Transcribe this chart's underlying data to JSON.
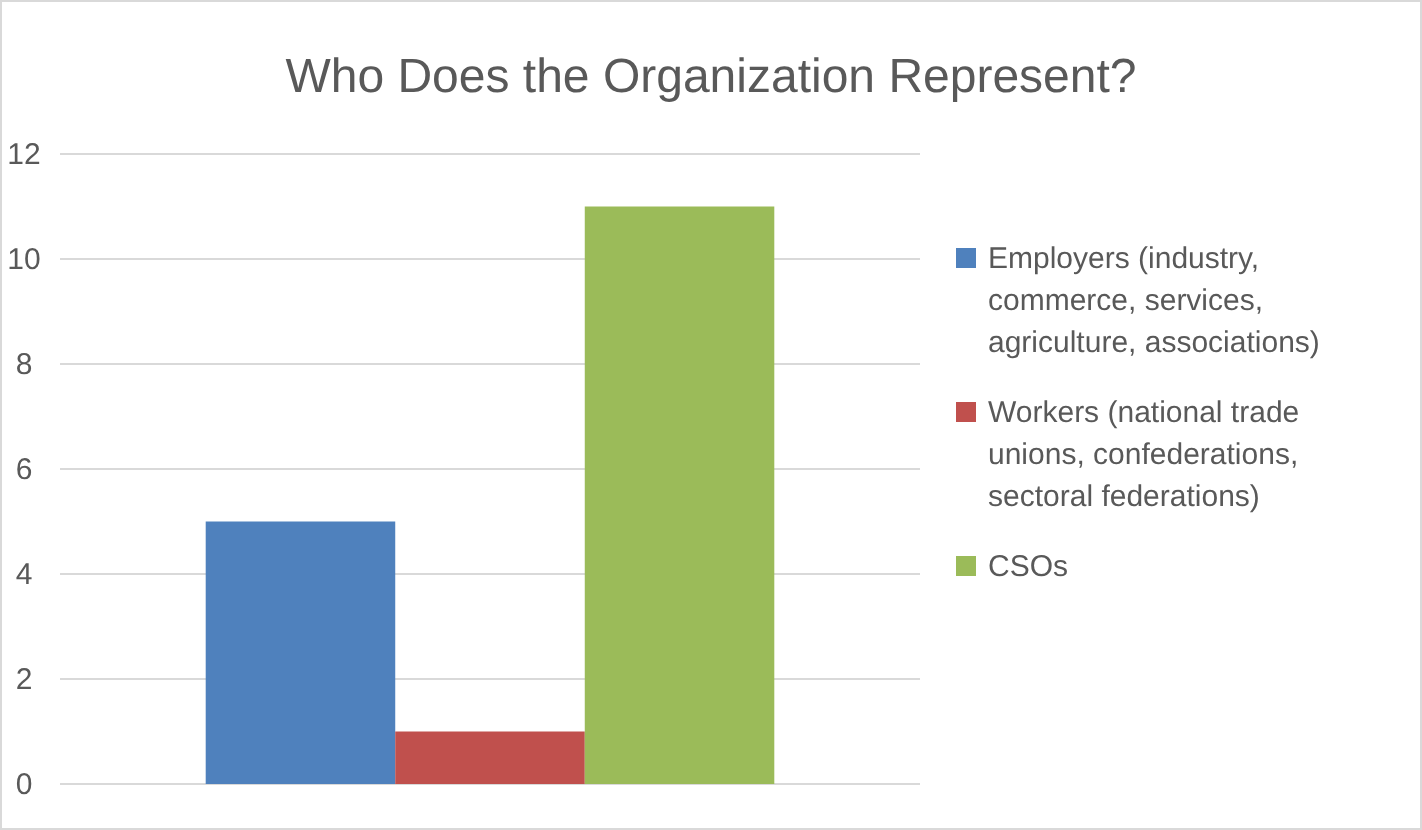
{
  "chart_data": {
    "type": "bar",
    "title": "Who Does the Organization Represent?",
    "categories": [
      null
    ],
    "series": [
      {
        "name": "Employers (industry, commerce, services, agriculture, associations)",
        "color": "#4f81bd",
        "values": [
          5
        ]
      },
      {
        "name": "Workers (national trade unions, confederations, sectoral federations)",
        "color": "#c0504d",
        "values": [
          1
        ]
      },
      {
        "name": "CSOs",
        "color": "#9bbb59",
        "values": [
          11
        ]
      }
    ],
    "ylim": [
      0,
      12
    ],
    "yticks": [
      0,
      2,
      4,
      6,
      8,
      10,
      12
    ],
    "grid": "y",
    "legend": "right"
  }
}
